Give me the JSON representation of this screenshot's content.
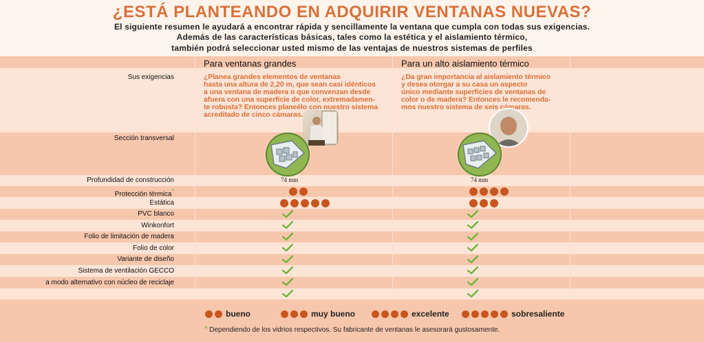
{
  "header": {
    "title": "¿ESTÁ PLANTEANDO EN ADQUIRIR VENTANAS NUEVAS?",
    "intro_line1": "El siguiente resumen le ayudará a encontrar rápida y sencillamente la ventana que cumpla con todas sus exigencias.",
    "intro_line2": "Además de las características básicas, tales como la estética y el aislamiento térmico,",
    "intro_line3": "también podrá seleccionar usted mismo de las ventajas de nuestros sistemas de perfiles"
  },
  "columns": [
    {
      "heading": "Para ventanas grandes",
      "description": [
        "¿Planea grandes elementos de ventanas",
        "hasta una altura de 2,20 m, que sean casi idénticos",
        "a una ventana de madera o que convenzan desde",
        "afuera con una superficie de color, extremadamen-",
        "te robusta? Entonces planeélo con nuestro sistema",
        "acreditado de cinco cámaras."
      ],
      "depth": "74 mm",
      "thermal_protection": 2,
      "statics": 5
    },
    {
      "heading": "Para un alto aislamiento térmico",
      "description": [
        "¿Da gran importancia al aislamiento térmico",
        "y desea otorgar a su casa un aspecto",
        "único mediante superficies de ventanas de",
        "color o de madera?  Entonces le recomenda-",
        "mos nuestro sistema de seis cámaras."
      ],
      "depth": "74 mm",
      "thermal_protection": 4,
      "statics": 3
    }
  ],
  "rows": {
    "requirements": "Sus exigencias",
    "cross_section": "Sección transversal",
    "depth": "Profundidad de construcción",
    "thermal": "Protección térmica",
    "thermal_star": "*",
    "statics": "Estática",
    "features": [
      "PVC blanco",
      "Winkonfort",
      "Folio de limitación de madera",
      "Folio de color",
      "Variante de diseño",
      "Sistema de ventilación GECCO",
      "a modo alternativo con núcleo de reciclaje"
    ]
  },
  "legend": [
    {
      "dots": 2,
      "label": "bueno"
    },
    {
      "dots": 3,
      "label": "muy bueno"
    },
    {
      "dots": 4,
      "label": "excelente"
    },
    {
      "dots": 5,
      "label": "sobresaliente"
    }
  ],
  "footnote": {
    "star": "*",
    "text": "Dependiendo de los vidrios respectivos. Su fabricante de ventanas le asesorará gustosamente."
  },
  "colors": {
    "accent": "#d9703a",
    "dot": "#c9561e",
    "check": "#6fb43a",
    "band_dark": "#f7c7ad",
    "band_light": "#fce5d7"
  }
}
